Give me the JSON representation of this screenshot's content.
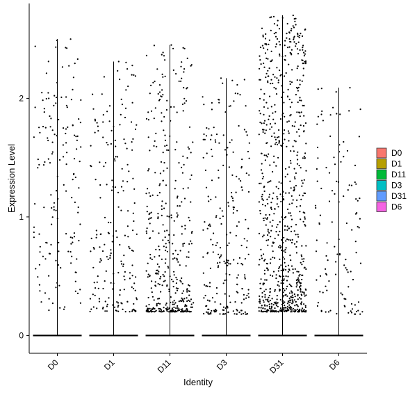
{
  "chart_data": {
    "type": "scatter",
    "subtype": "violin-jitter",
    "xlabel": "Identity",
    "ylabel": "Expression Level",
    "ylim": [
      -0.15,
      2.8
    ],
    "yticks": [
      0,
      1,
      2
    ],
    "categories": [
      "D0",
      "D1",
      "D11",
      "D3",
      "D31",
      "D6"
    ],
    "legend": {
      "position": "right",
      "entries": [
        "D0",
        "D1",
        "D11",
        "D3",
        "D31",
        "D6"
      ]
    },
    "grid": false,
    "series": [
      {
        "name": "D0",
        "color": "#F8766D",
        "max_value": 2.5,
        "n_expressing": 160,
        "expressed_range": [
          0.2,
          2.5
        ]
      },
      {
        "name": "D1",
        "color": "#B79F00",
        "max_value": 2.31,
        "n_expressing": 200,
        "expressed_range": [
          0.2,
          2.31
        ]
      },
      {
        "name": "D11",
        "color": "#00BA38",
        "max_value": 2.45,
        "n_expressing": 420,
        "expressed_range": [
          0.2,
          2.45
        ]
      },
      {
        "name": "D3",
        "color": "#00BFC4",
        "max_value": 2.17,
        "n_expressing": 240,
        "expressed_range": [
          0.18,
          2.17
        ]
      },
      {
        "name": "D31",
        "color": "#619CFF",
        "max_value": 2.7,
        "n_expressing": 800,
        "expressed_range": [
          0.2,
          2.7
        ]
      },
      {
        "name": "D6",
        "color": "#F564E3",
        "max_value": 2.09,
        "n_expressing": 120,
        "expressed_range": [
          0.18,
          2.09
        ]
      }
    ]
  }
}
